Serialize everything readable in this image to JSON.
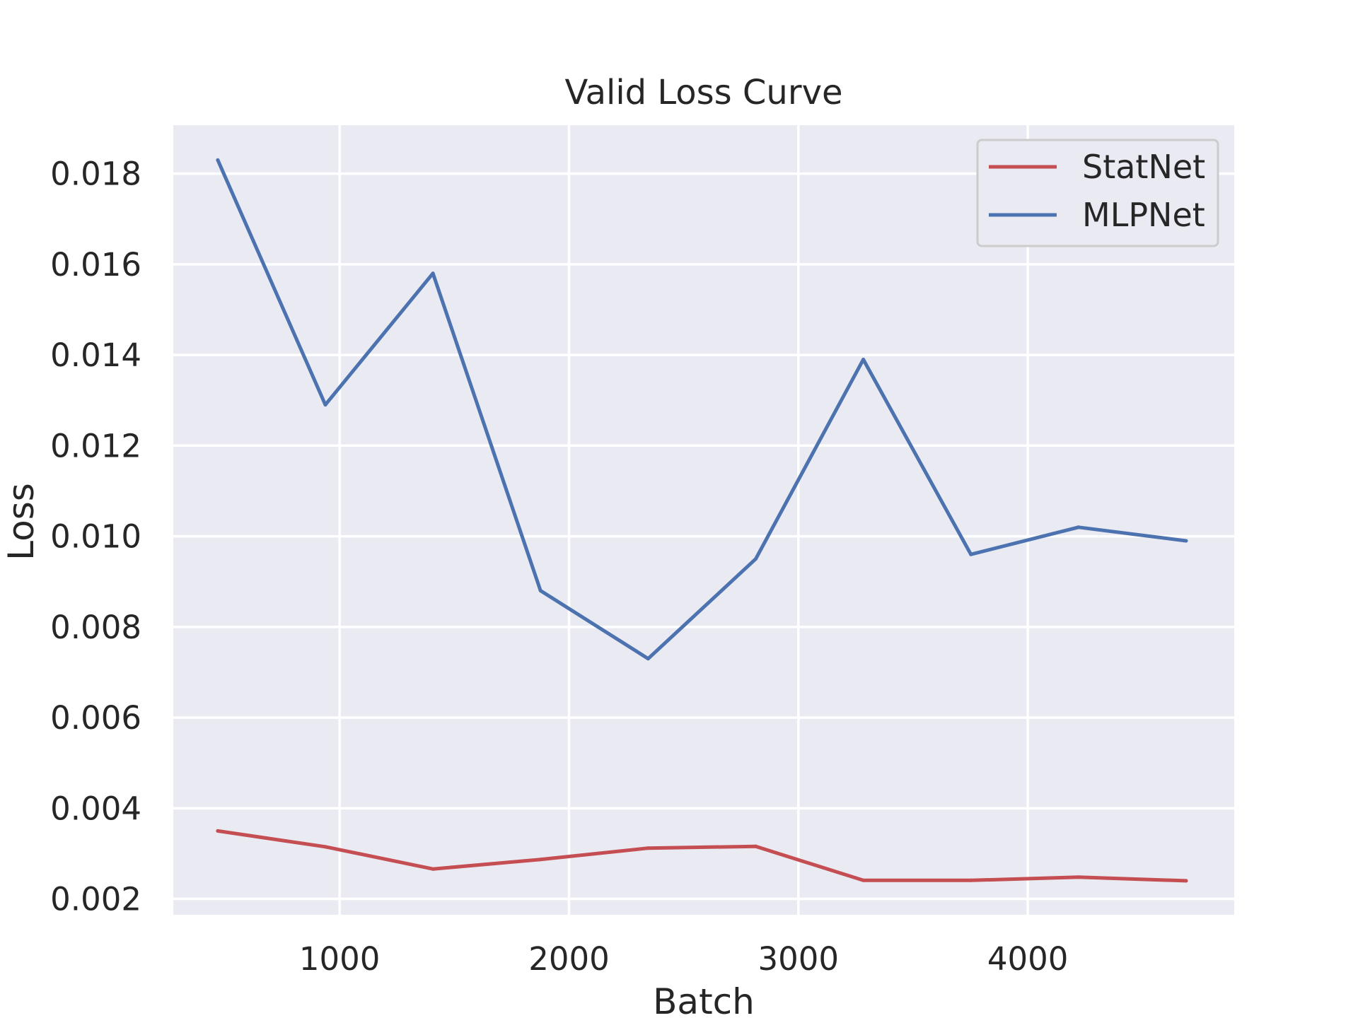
{
  "chart_data": {
    "type": "line",
    "title": "Valid Loss Curve",
    "xlabel": "Batch",
    "ylabel": "Loss",
    "xlim": [
      275,
      4900
    ],
    "ylim": [
      0.00165,
      0.01907
    ],
    "xticks": [
      1000,
      2000,
      3000,
      4000
    ],
    "xtick_labels": [
      "1000",
      "2000",
      "3000",
      "4000"
    ],
    "yticks": [
      0.002,
      0.004,
      0.006,
      0.008,
      0.01,
      0.012,
      0.014,
      0.016,
      0.018
    ],
    "ytick_labels": [
      "0.002",
      "0.004",
      "0.006",
      "0.008",
      "0.010",
      "0.012",
      "0.014",
      "0.016",
      "0.018"
    ],
    "grid": true,
    "legend_position": "top-right",
    "x": [
      469,
      938,
      1407,
      1876,
      2345,
      2814,
      3283,
      3752,
      4221,
      4690
    ],
    "series": [
      {
        "name": "StatNet",
        "color": "#c44e52",
        "values": [
          0.0035,
          0.00315,
          0.00266,
          0.00287,
          0.00312,
          0.00316,
          0.00241,
          0.00241,
          0.00248,
          0.0024
        ]
      },
      {
        "name": "MLPNet",
        "color": "#4c72b0",
        "values": [
          0.0183,
          0.0129,
          0.0158,
          0.0088,
          0.0073,
          0.0095,
          0.0139,
          0.0096,
          0.0102,
          0.0099
        ]
      }
    ]
  }
}
